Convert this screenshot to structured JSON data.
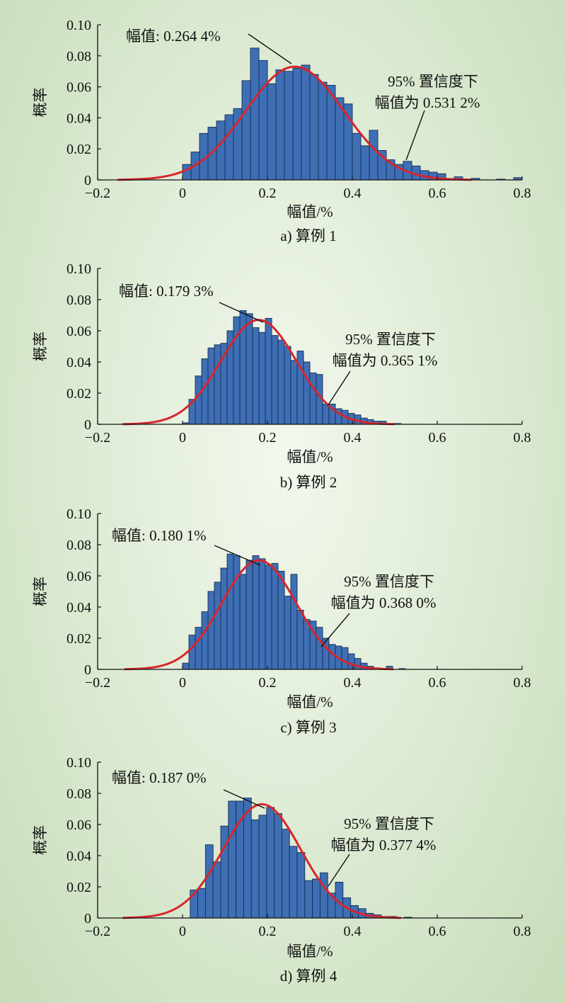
{
  "chart_data": [
    {
      "type": "bar",
      "caption": "a) 算例 1",
      "xlabel": "幅值/%",
      "ylabel": "概率",
      "xlim": [
        -0.2,
        0.8
      ],
      "ylim": [
        0,
        0.1
      ],
      "xticks": [
        "−0.2",
        "0",
        "0.2",
        "0.4",
        "0.6",
        "0.8"
      ],
      "yticks": [
        "0",
        "0.02",
        "0.04",
        "0.06",
        "0.08",
        "0.10"
      ],
      "grid": false,
      "annotation_mean": "幅值: 0.264 4%",
      "annotation_ci_line1": "95% 置信度下",
      "annotation_ci_line2": "幅值为 0.531 2%",
      "mean": 0.2644,
      "ci95": 0.5312,
      "bin_width": 0.02,
      "bins": [
        [
          0.0,
          0.01
        ],
        [
          0.02,
          0.018
        ],
        [
          0.04,
          0.03
        ],
        [
          0.06,
          0.034
        ],
        [
          0.08,
          0.038
        ],
        [
          0.1,
          0.042
        ],
        [
          0.12,
          0.046
        ],
        [
          0.14,
          0.064
        ],
        [
          0.16,
          0.085
        ],
        [
          0.18,
          0.077
        ],
        [
          0.2,
          0.062
        ],
        [
          0.22,
          0.071
        ],
        [
          0.24,
          0.07
        ],
        [
          0.26,
          0.072
        ],
        [
          0.28,
          0.074
        ],
        [
          0.3,
          0.068
        ],
        [
          0.32,
          0.063
        ],
        [
          0.34,
          0.061
        ],
        [
          0.36,
          0.053
        ],
        [
          0.38,
          0.049
        ],
        [
          0.4,
          0.03
        ],
        [
          0.42,
          0.022
        ],
        [
          0.44,
          0.032
        ],
        [
          0.46,
          0.019
        ],
        [
          0.48,
          0.013
        ],
        [
          0.5,
          0.01
        ],
        [
          0.52,
          0.012
        ],
        [
          0.54,
          0.009
        ],
        [
          0.56,
          0.006
        ],
        [
          0.58,
          0.005
        ],
        [
          0.6,
          0.004
        ],
        [
          0.64,
          0.002
        ],
        [
          0.68,
          0.001
        ],
        [
          0.74,
          0.0005
        ],
        [
          0.78,
          0.0015
        ]
      ],
      "fit_peak": 0.073,
      "fit_sigma": 0.116
    },
    {
      "type": "bar",
      "caption": "b) 算例 2",
      "xlabel": "幅值/%",
      "ylabel": "概率",
      "xlim": [
        -0.2,
        0.8
      ],
      "ylim": [
        0,
        0.1
      ],
      "xticks": [
        "−0.2",
        "0",
        "0.2",
        "0.4",
        "0.6",
        "0.8"
      ],
      "yticks": [
        "0",
        "0.02",
        "0.04",
        "0.06",
        "0.08",
        "0.10"
      ],
      "grid": false,
      "annotation_mean": "幅值: 0.179 3%",
      "annotation_ci_line1": "95% 置信度下",
      "annotation_ci_line2": "幅值为 0.365 1%",
      "mean": 0.1793,
      "ci95": 0.3651,
      "bin_width": 0.015,
      "bins": [
        [
          0.0,
          0.001
        ],
        [
          0.015,
          0.016
        ],
        [
          0.03,
          0.031
        ],
        [
          0.045,
          0.042
        ],
        [
          0.06,
          0.049
        ],
        [
          0.075,
          0.051
        ],
        [
          0.09,
          0.052
        ],
        [
          0.105,
          0.06
        ],
        [
          0.12,
          0.069
        ],
        [
          0.135,
          0.073
        ],
        [
          0.15,
          0.071
        ],
        [
          0.165,
          0.062
        ],
        [
          0.18,
          0.059
        ],
        [
          0.195,
          0.068
        ],
        [
          0.21,
          0.057
        ],
        [
          0.225,
          0.054
        ],
        [
          0.24,
          0.05
        ],
        [
          0.255,
          0.041
        ],
        [
          0.27,
          0.047
        ],
        [
          0.285,
          0.04
        ],
        [
          0.3,
          0.033
        ],
        [
          0.315,
          0.032
        ],
        [
          0.33,
          0.013
        ],
        [
          0.345,
          0.013
        ],
        [
          0.36,
          0.01
        ],
        [
          0.375,
          0.009
        ],
        [
          0.39,
          0.007
        ],
        [
          0.405,
          0.006
        ],
        [
          0.42,
          0.004
        ],
        [
          0.435,
          0.003
        ],
        [
          0.45,
          0.002
        ],
        [
          0.465,
          0.002
        ],
        [
          0.5,
          0.0005
        ]
      ],
      "fit_peak": 0.067,
      "fit_sigma": 0.089
    },
    {
      "type": "bar",
      "caption": "c) 算例 3",
      "xlabel": "幅值/%",
      "ylabel": "概率",
      "xlim": [
        -0.2,
        0.8
      ],
      "ylim": [
        0,
        0.1
      ],
      "xticks": [
        "−0.2",
        "0",
        "0.2",
        "0.4",
        "0.6",
        "0.8"
      ],
      "yticks": [
        "0",
        "0.02",
        "0.04",
        "0.06",
        "0.08",
        "0.10"
      ],
      "grid": false,
      "annotation_mean": "幅值: 0.180 1%",
      "annotation_ci_line1": "95% 置信度下",
      "annotation_ci_line2": "幅值为 0.368 0%",
      "mean": 0.1801,
      "ci95": 0.368,
      "bin_width": 0.015,
      "bins": [
        [
          0.0,
          0.004
        ],
        [
          0.015,
          0.022
        ],
        [
          0.03,
          0.027
        ],
        [
          0.045,
          0.037
        ],
        [
          0.06,
          0.05
        ],
        [
          0.075,
          0.056
        ],
        [
          0.09,
          0.065
        ],
        [
          0.105,
          0.074
        ],
        [
          0.12,
          0.073
        ],
        [
          0.135,
          0.061
        ],
        [
          0.15,
          0.07
        ],
        [
          0.165,
          0.073
        ],
        [
          0.18,
          0.071
        ],
        [
          0.195,
          0.067
        ],
        [
          0.21,
          0.068
        ],
        [
          0.225,
          0.063
        ],
        [
          0.24,
          0.047
        ],
        [
          0.255,
          0.061
        ],
        [
          0.27,
          0.038
        ],
        [
          0.285,
          0.032
        ],
        [
          0.3,
          0.031
        ],
        [
          0.315,
          0.027
        ],
        [
          0.33,
          0.02
        ],
        [
          0.345,
          0.016
        ],
        [
          0.36,
          0.015
        ],
        [
          0.375,
          0.014
        ],
        [
          0.39,
          0.01
        ],
        [
          0.405,
          0.007
        ],
        [
          0.42,
          0.004
        ],
        [
          0.435,
          0.002
        ],
        [
          0.45,
          0.001
        ],
        [
          0.48,
          0.002
        ],
        [
          0.51,
          0.0005
        ]
      ],
      "fit_peak": 0.07,
      "fit_sigma": 0.088
    },
    {
      "type": "bar",
      "caption": "d) 算例 4",
      "xlabel": "幅值/%",
      "ylabel": "概率",
      "xlim": [
        -0.2,
        0.8
      ],
      "ylim": [
        0,
        0.1
      ],
      "xticks": [
        "−0.2",
        "0",
        "0.2",
        "0.4",
        "0.6",
        "0.8"
      ],
      "yticks": [
        "0",
        "0.02",
        "0.04",
        "0.06",
        "0.08",
        "0.10"
      ],
      "grid": false,
      "annotation_mean": "幅值: 0.187 0%",
      "annotation_ci_line1": "95% 置信度下",
      "annotation_ci_line2": "幅值为 0.377 4%",
      "mean": 0.187,
      "ci95": 0.3774,
      "bin_width": 0.018,
      "bins": [
        [
          0.018,
          0.018
        ],
        [
          0.036,
          0.019
        ],
        [
          0.054,
          0.047
        ],
        [
          0.072,
          0.036
        ],
        [
          0.09,
          0.059
        ],
        [
          0.108,
          0.075
        ],
        [
          0.126,
          0.075
        ],
        [
          0.144,
          0.077
        ],
        [
          0.162,
          0.063
        ],
        [
          0.18,
          0.066
        ],
        [
          0.198,
          0.071
        ],
        [
          0.216,
          0.067
        ],
        [
          0.234,
          0.057
        ],
        [
          0.252,
          0.046
        ],
        [
          0.27,
          0.042
        ],
        [
          0.288,
          0.024
        ],
        [
          0.306,
          0.025
        ],
        [
          0.324,
          0.029
        ],
        [
          0.342,
          0.016
        ],
        [
          0.36,
          0.023
        ],
        [
          0.378,
          0.013
        ],
        [
          0.396,
          0.008
        ],
        [
          0.414,
          0.006
        ],
        [
          0.432,
          0.003
        ],
        [
          0.45,
          0.002
        ],
        [
          0.468,
          0.001
        ],
        [
          0.486,
          0.001
        ],
        [
          0.522,
          0.0005
        ]
      ],
      "fit_peak": 0.073,
      "fit_sigma": 0.091
    }
  ],
  "colors": {
    "bar_fill": "#3e6fb5",
    "bar_stroke": "#162c52",
    "fit_curve": "#d8262c",
    "axis": "#111111"
  }
}
